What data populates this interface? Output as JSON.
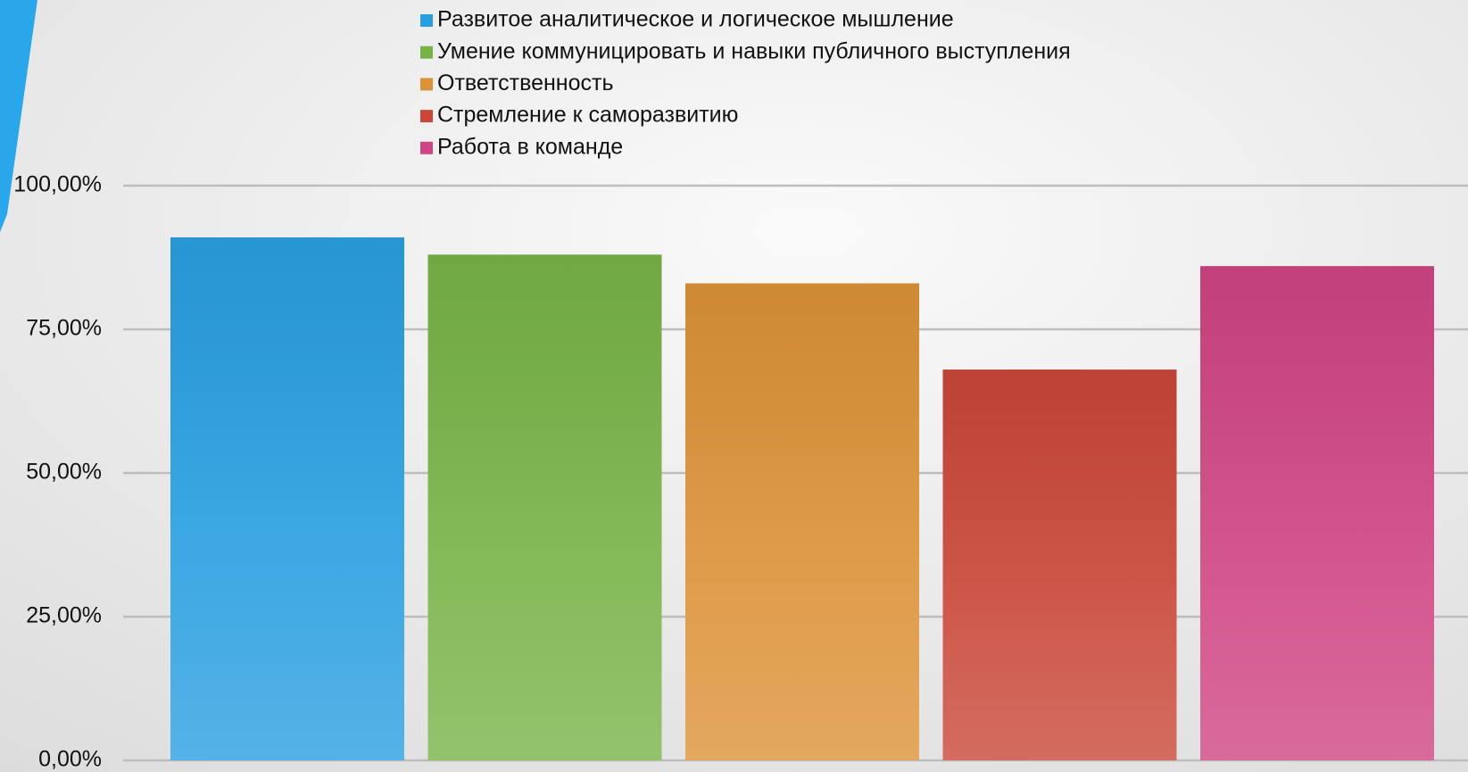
{
  "chart_data": {
    "type": "bar",
    "categories": [
      null
    ],
    "series": [
      {
        "name": "Развитое аналитическое и логическое мышление",
        "color": "#2a9fe0",
        "values": [
          91
        ]
      },
      {
        "name": "Умение коммуницировать и навыки публичного выступления",
        "color": "#78b348",
        "values": [
          88
        ]
      },
      {
        "name": "Ответственность",
        "color": "#dc9238",
        "values": [
          83
        ]
      },
      {
        "name": "Стремление к саморазвитию",
        "color": "#c94739",
        "values": [
          68
        ]
      },
      {
        "name": "Работа в команде",
        "color": "#cf4583",
        "values": [
          86
        ]
      }
    ],
    "ylim": [
      0,
      100
    ],
    "yticks": [
      {
        "value": 0,
        "label": "0,00%"
      },
      {
        "value": 25,
        "label": "25,00%"
      },
      {
        "value": 50,
        "label": "50,00%"
      },
      {
        "value": 75,
        "label": "75,00%"
      },
      {
        "value": 100,
        "label": "100,00%"
      }
    ],
    "grid": true,
    "legend": "top"
  }
}
